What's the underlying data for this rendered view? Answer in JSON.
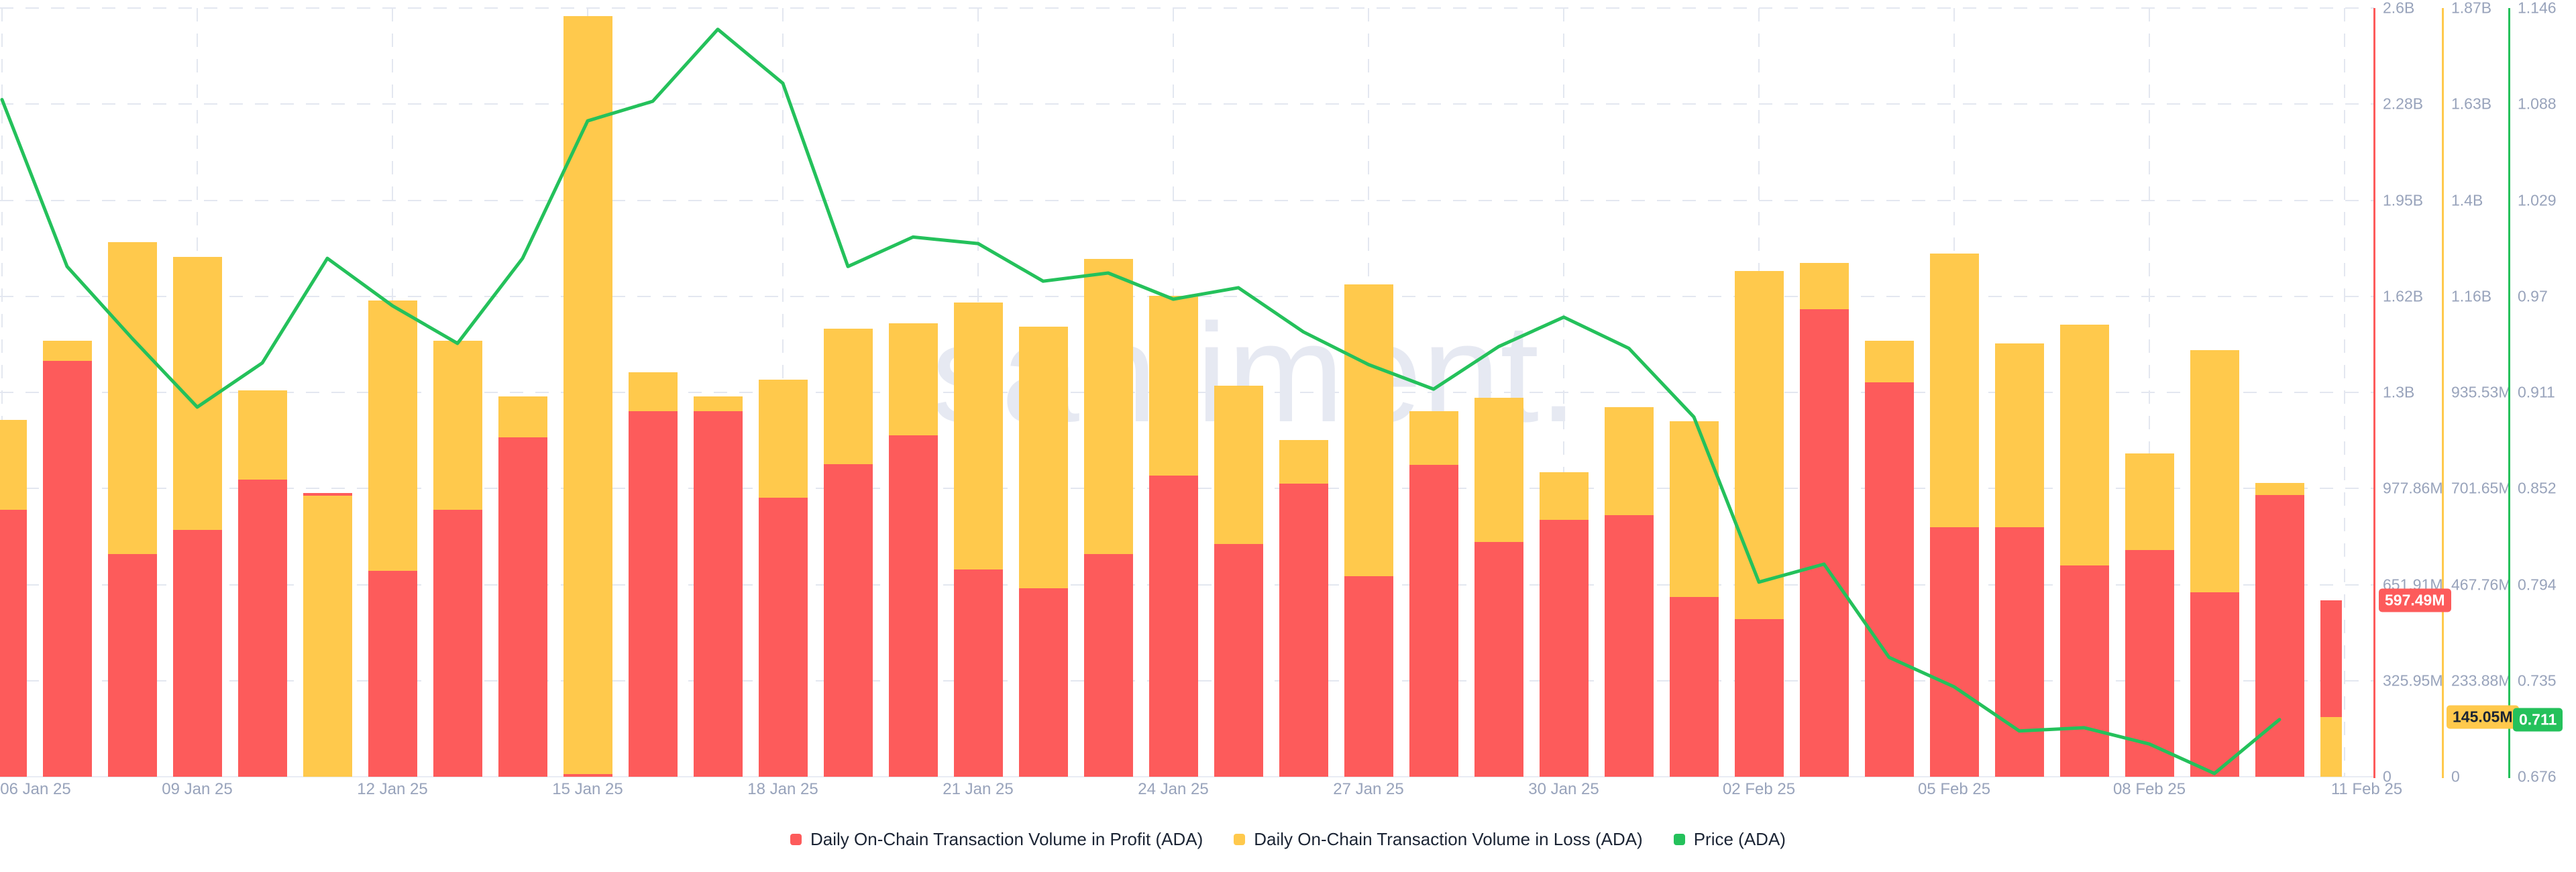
{
  "watermark": "santiment.",
  "colors": {
    "profit": "#fd5b5b",
    "loss": "#ffc94c",
    "price": "#24c15b",
    "grid": "#e3e7f0",
    "axis_label": "#98a3bb",
    "legend_text": "#1b2434",
    "watermark": "#e6e9f2",
    "background": "#ffffff"
  },
  "legend": {
    "items": [
      {
        "name": "profit"
      },
      {
        "name": "loss"
      },
      {
        "name": "price"
      }
    ]
  },
  "chart_data": {
    "type": "bar+line",
    "grid": true,
    "legend_position": "bottom",
    "dates": [
      "06 Jan 25",
      "07 Jan 25",
      "08 Jan 25",
      "09 Jan 25",
      "10 Jan 25",
      "11 Jan 25",
      "12 Jan 25",
      "13 Jan 25",
      "14 Jan 25",
      "15 Jan 25",
      "16 Jan 25",
      "17 Jan 25",
      "18 Jan 25",
      "19 Jan 25",
      "20 Jan 25",
      "21 Jan 25",
      "22 Jan 25",
      "23 Jan 25",
      "24 Jan 25",
      "25 Jan 25",
      "26 Jan 25",
      "27 Jan 25",
      "28 Jan 25",
      "29 Jan 25",
      "30 Jan 25",
      "31 Jan 25",
      "01 Feb 25",
      "02 Feb 25",
      "03 Feb 25",
      "04 Feb 25",
      "05 Feb 25",
      "06 Feb 25",
      "07 Feb 25",
      "08 Feb 25",
      "09 Feb 25",
      "10 Feb 25",
      "11 Feb 25"
    ],
    "x_tick_labels": [
      "06 Jan 25",
      "09 Jan 25",
      "12 Jan 25",
      "15 Jan 25",
      "18 Jan 25",
      "21 Jan 25",
      "24 Jan 25",
      "27 Jan 25",
      "30 Jan 25",
      "02 Feb 25",
      "05 Feb 25",
      "08 Feb 25",
      "11 Feb 25"
    ],
    "series": [
      {
        "name": "Daily On-Chain Transaction Volume in Profit (ADA)",
        "type": "bar",
        "axis": "profit",
        "color": "#fd5b5b",
        "values_million": [
          903,
          1407,
          753,
          835,
          1005,
          960,
          697,
          903,
          1148,
          8,
          1237,
          1237,
          944,
          1057,
          1155,
          701,
          638,
          753,
          1019,
          787,
          991,
          678,
          1055,
          794,
          869,
          885,
          608,
          533,
          1581,
          1334,
          844,
          844,
          715,
          767,
          624,
          953,
          597.49
        ]
      },
      {
        "name": "Daily On-Chain Transaction Volume in Loss (ADA)",
        "type": "bar",
        "axis": "loss",
        "color": "#ffc94c",
        "values_million": [
          868,
          1061,
          1301,
          1265,
          940,
          684,
          1159,
          1061,
          925,
          1850,
          984,
          925,
          966,
          1090,
          1103,
          1154,
          1095,
          1260,
          1170,
          951,
          819,
          1198,
          889,
          922,
          741,
          899,
          865,
          1230,
          1250,
          1061,
          1273,
          1054,
          1100,
          787,
          1038,
          715,
          145.05
        ]
      },
      {
        "name": "Price (ADA)",
        "type": "line",
        "axis": "price",
        "color": "#24c15b",
        "values": [
          1.09,
          0.988,
          0.944,
          0.902,
          0.929,
          0.993,
          0.964,
          0.941,
          0.993,
          1.077,
          1.089,
          1.133,
          1.1,
          0.988,
          1.006,
          1.002,
          0.979,
          0.984,
          0.968,
          0.975,
          0.948,
          0.928,
          0.913,
          0.939,
          0.957,
          0.938,
          0.896,
          0.795,
          0.806,
          0.749,
          0.731,
          0.704,
          0.706,
          0.696,
          0.678,
          0.711,
          null
        ]
      }
    ],
    "axes": {
      "profit": {
        "ticks": [
          "2.6B",
          "2.28B",
          "1.95B",
          "1.62B",
          "1.3B",
          "977.86M",
          "651.91M",
          "325.95M",
          "0"
        ],
        "max_million": 2600,
        "min": 0,
        "color": "#fd5b5b"
      },
      "loss": {
        "ticks": [
          "1.87B",
          "1.63B",
          "1.4B",
          "1.16B",
          "935.53M",
          "701.65M",
          "467.76M",
          "233.88M",
          "0"
        ],
        "max_million": 1870,
        "min": 0,
        "color": "#ffc94c"
      },
      "price": {
        "ticks": [
          "1.146",
          "1.088",
          "1.029",
          "0.97",
          "0.911",
          "0.852",
          "0.794",
          "0.735",
          "0.676"
        ],
        "max": 1.146,
        "min": 0.676,
        "color": "#24c15b"
      }
    },
    "last_value_badges": {
      "profit": {
        "text": "597.49M",
        "value_million": 597.49
      },
      "loss": {
        "text": "145.05M",
        "value_million": 145.05
      },
      "price": {
        "text": "0.711",
        "value": 0.711
      }
    }
  }
}
